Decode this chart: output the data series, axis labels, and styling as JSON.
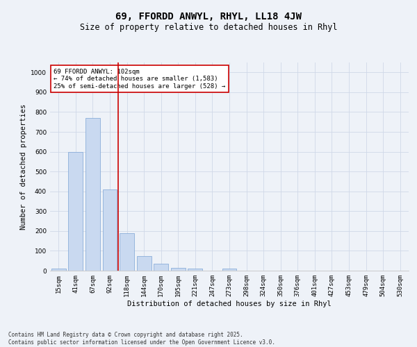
{
  "title1": "69, FFORDD ANWYL, RHYL, LL18 4JW",
  "title2": "Size of property relative to detached houses in Rhyl",
  "xlabel": "Distribution of detached houses by size in Rhyl",
  "ylabel": "Number of detached properties",
  "categories": [
    "15sqm",
    "41sqm",
    "67sqm",
    "92sqm",
    "118sqm",
    "144sqm",
    "170sqm",
    "195sqm",
    "221sqm",
    "247sqm",
    "273sqm",
    "298sqm",
    "324sqm",
    "350sqm",
    "376sqm",
    "401sqm",
    "427sqm",
    "453sqm",
    "479sqm",
    "504sqm",
    "530sqm"
  ],
  "values": [
    10,
    600,
    770,
    410,
    190,
    75,
    35,
    15,
    10,
    0,
    10,
    0,
    0,
    0,
    0,
    0,
    0,
    0,
    0,
    0,
    0
  ],
  "bar_color": "#c9d9f0",
  "bar_edge_color": "#7ba3d4",
  "vline_x": 3.5,
  "vline_color": "#cc0000",
  "annotation_text": "69 FFORDD ANWYL: 102sqm\n← 74% of detached houses are smaller (1,583)\n25% of semi-detached houses are larger (528) →",
  "annotation_box_color": "#ffffff",
  "annotation_box_edge": "#cc0000",
  "ylim": [
    0,
    1050
  ],
  "yticks": [
    0,
    100,
    200,
    300,
    400,
    500,
    600,
    700,
    800,
    900,
    1000
  ],
  "grid_color": "#d0d8e8",
  "background_color": "#eef2f8",
  "footer": "Contains HM Land Registry data © Crown copyright and database right 2025.\nContains public sector information licensed under the Open Government Licence v3.0.",
  "title1_fontsize": 10,
  "title2_fontsize": 8.5,
  "xlabel_fontsize": 7.5,
  "ylabel_fontsize": 7.5,
  "tick_fontsize": 6.5,
  "footer_fontsize": 5.5,
  "annot_fontsize": 6.5
}
